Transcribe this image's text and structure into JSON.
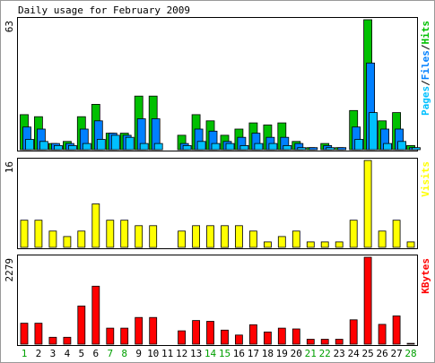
{
  "chart_data": {
    "type": "bar",
    "title": "Daily usage for February 2009",
    "categories": [
      "1",
      "2",
      "3",
      "4",
      "5",
      "6",
      "7",
      "8",
      "9",
      "10",
      "11",
      "12",
      "13",
      "14",
      "15",
      "16",
      "17",
      "18",
      "19",
      "20",
      "21",
      "22",
      "23",
      "24",
      "25",
      "26",
      "27",
      "28"
    ],
    "weekend_days": [
      "1",
      "7",
      "8",
      "14",
      "15",
      "21",
      "22",
      "28"
    ],
    "panels": [
      {
        "id": "hits",
        "max_label": "63",
        "ymax": 63,
        "legend": [
          "Pages",
          "/",
          "Files",
          "/",
          "Hits"
        ],
        "series": [
          {
            "name": "Hits",
            "color": "#00c000",
            "values": [
              17,
              16,
              3,
              4,
              16,
              22,
              8,
              8,
              26,
              26,
              0,
              7,
              17,
              14,
              7,
              10,
              13,
              12,
              13,
              4,
              1,
              3,
              1,
              19,
              63,
              14,
              18,
              2
            ]
          },
          {
            "name": "Files",
            "color": "#0080ff",
            "values": [
              11,
              10,
              3,
              3,
              10,
              14,
              8,
              7,
              15,
              15,
              0,
              3,
              10,
              9,
              4,
              6,
              8,
              6,
              6,
              3,
              1,
              2,
              1,
              11,
              42,
              10,
              10,
              1
            ]
          },
          {
            "name": "Pages",
            "color": "#00c0ff",
            "values": [
              5,
              4,
              2,
              2,
              3,
              5,
              7,
              6,
              3,
              3,
              0,
              2,
              4,
              3,
              3,
              2,
              3,
              3,
              2,
              1,
              0,
              1,
              0,
              5,
              18,
              3,
              4,
              1
            ]
          }
        ]
      },
      {
        "id": "visits",
        "max_label": "16",
        "ymax": 16,
        "legend": [
          "Visits"
        ],
        "series": [
          {
            "name": "Visits",
            "color": "#ffff00",
            "values": [
              5,
              5,
              3,
              2,
              3,
              8,
              5,
              5,
              4,
              4,
              0,
              3,
              4,
              4,
              4,
              4,
              3,
              1,
              2,
              3,
              1,
              1,
              1,
              5,
              16,
              3,
              5,
              1
            ]
          }
        ]
      },
      {
        "id": "kbytes",
        "max_label": "2279",
        "ymax": 2279,
        "legend": [
          "KBytes"
        ],
        "series": [
          {
            "name": "KBytes",
            "color": "#ff0000",
            "values": [
              550,
              550,
              180,
              180,
              1000,
              1520,
              420,
              420,
              700,
              700,
              0,
              350,
              620,
              600,
              370,
              240,
              510,
              320,
              420,
              400,
              130,
              130,
              130,
              640,
              2279,
              520,
              740,
              20
            ]
          }
        ]
      }
    ],
    "colors": {
      "frame": "#000000",
      "outer_border": "#999999",
      "background": "#ffffff",
      "weekday_label": "#000000",
      "weekend_label": "#00a000",
      "legend_sep": "#000000"
    }
  }
}
